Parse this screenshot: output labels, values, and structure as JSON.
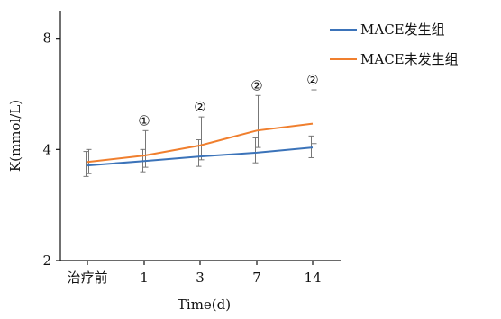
{
  "chart_data": {
    "type": "line",
    "title": "",
    "xlabel": "Time(d)",
    "ylabel": "K(mmol/L)",
    "categories": [
      "治疗前",
      "1",
      "3",
      "7",
      "14"
    ],
    "ylim": [
      2,
      9.5
    ],
    "yticks": [
      2,
      4,
      8
    ],
    "ytick_labels": [
      "2",
      "4",
      "8"
    ],
    "grid": false,
    "legend_position": "top-right",
    "series": [
      {
        "name": "MACE发生组",
        "color": "#3b73b9",
        "values": [
          3.62,
          3.72,
          3.83,
          3.92,
          4.05
        ],
        "error_low": [
          3.38,
          3.48,
          3.6,
          3.68,
          3.8
        ],
        "error_high": [
          3.95,
          4.0,
          4.25,
          4.3,
          4.35
        ]
      },
      {
        "name": "MACE未发生组",
        "color": "#f07f2e",
        "values": [
          3.7,
          3.85,
          4.1,
          4.5,
          4.7
        ],
        "error_low": [
          3.44,
          3.58,
          3.75,
          4.05,
          4.15
        ],
        "error_high": [
          4.0,
          4.5,
          4.9,
          5.6,
          5.8
        ]
      }
    ],
    "annotations": [
      {
        "category": "1",
        "text": "①"
      },
      {
        "category": "3",
        "text": "②"
      },
      {
        "category": "7",
        "text": "②"
      },
      {
        "category": "14",
        "text": "②"
      }
    ]
  }
}
